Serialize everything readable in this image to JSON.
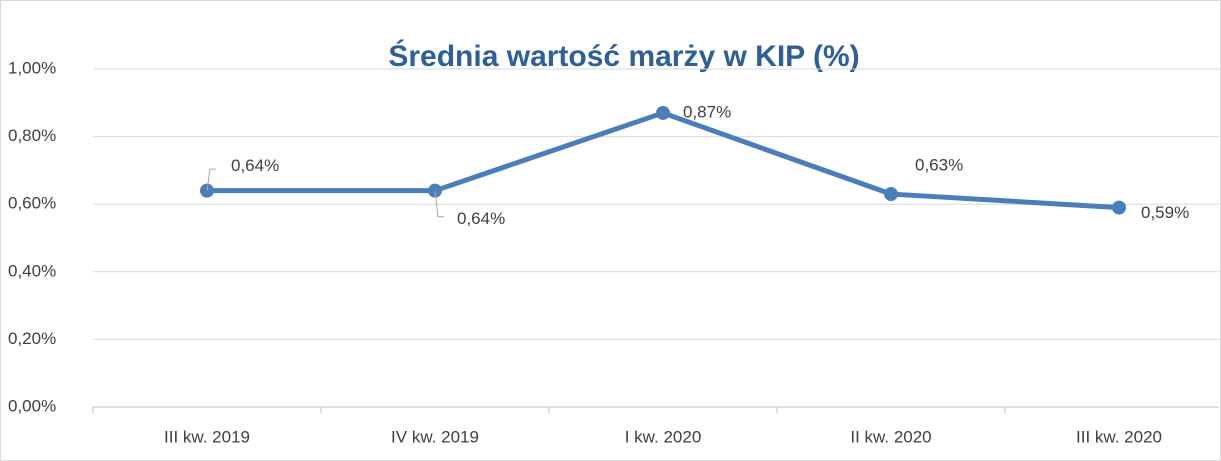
{
  "chart_data": {
    "type": "line",
    "title": "Średnia wartość marży w KIP (%)",
    "categories": [
      "III kw. 2019",
      "IV kw. 2019",
      "I kw. 2020",
      "II kw. 2020",
      "III kw. 2020"
    ],
    "series": [
      {
        "color": "#4a7ebb",
        "values": [
          0.64,
          0.64,
          0.87,
          0.63,
          0.59
        ],
        "value_labels": [
          "0,64%",
          "0,64%",
          "0,87%",
          "0,63%",
          "0,59%"
        ]
      }
    ],
    "ylim": [
      0,
      1
    ],
    "yticks": [
      {
        "value": 0,
        "label": "0,00%"
      },
      {
        "value": 0.2,
        "label": "0,20%"
      },
      {
        "value": 0.4,
        "label": "0,40%"
      },
      {
        "value": 0.6,
        "label": "0,60%"
      },
      {
        "value": 0.8,
        "label": "0,80%"
      },
      {
        "value": 1,
        "label": "1,00%"
      }
    ],
    "grid": true
  }
}
